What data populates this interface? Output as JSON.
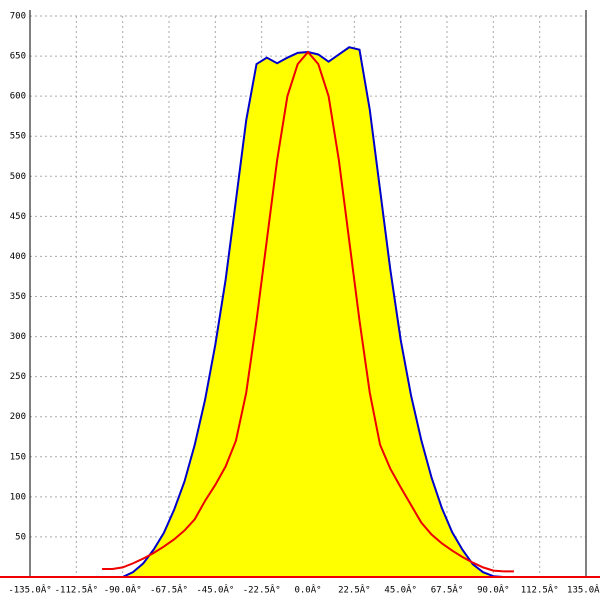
{
  "chart_data": {
    "type": "line",
    "x": [
      -100,
      -95,
      -90,
      -85,
      -80,
      -75,
      -70,
      -65,
      -60,
      -55,
      -50,
      -45,
      -40,
      -35,
      -30,
      -25,
      -20,
      -15,
      -10,
      -5,
      0,
      5,
      10,
      15,
      20,
      25,
      30,
      35,
      40,
      45,
      50,
      55,
      60,
      65,
      70,
      75,
      80,
      85,
      90,
      95,
      100
    ],
    "series": [
      {
        "color": "#0000cc",
        "fill": "#ffff00",
        "values": [
          null,
          null,
          0,
          6,
          17,
          34,
          55,
          84,
          119,
          165,
          221,
          290,
          371,
          470,
          570,
          640,
          648,
          641,
          648,
          654,
          655,
          652,
          643,
          652,
          661,
          658,
          583,
          483,
          383,
          296,
          227,
          171,
          124,
          86,
          56,
          34,
          16,
          6,
          1,
          0,
          0
        ]
      },
      {
        "color": "#ee0000",
        "values": [
          10,
          10,
          12,
          17,
          23,
          30,
          38,
          47,
          58,
          72,
          95,
          115,
          138,
          170,
          230,
          320,
          420,
          520,
          600,
          640,
          655,
          640,
          600,
          520,
          420,
          320,
          230,
          165,
          135,
          112,
          90,
          68,
          53,
          42,
          33,
          25,
          18,
          12,
          8,
          7,
          7
        ]
      }
    ],
    "xlim": [
      -135,
      135
    ],
    "xticks": [
      {
        "value": -135,
        "label": "-135.0Â°"
      },
      {
        "value": -112.5,
        "label": "-112.5Â°"
      },
      {
        "value": -90,
        "label": "-90.0Â°"
      },
      {
        "value": -67.5,
        "label": "-67.5Â°"
      },
      {
        "value": -45,
        "label": "-45.0Â°"
      },
      {
        "value": -22.5,
        "label": "-22.5Â°"
      },
      {
        "value": 0,
        "label": "0.0Â°"
      },
      {
        "value": 22.5,
        "label": "22.5Â°"
      },
      {
        "value": 45,
        "label": "45.0Â°"
      },
      {
        "value": 67.5,
        "label": "67.5Â°"
      },
      {
        "value": 90,
        "label": "90.0Â°"
      },
      {
        "value": 112.5,
        "label": "112.5Â°"
      },
      {
        "value": 135,
        "label": "135.0Â°"
      }
    ],
    "ylim": [
      0,
      700
    ],
    "yticks": [
      50,
      100,
      150,
      200,
      250,
      300,
      350,
      400,
      450,
      500,
      550,
      600,
      650,
      700
    ],
    "grid": true
  }
}
